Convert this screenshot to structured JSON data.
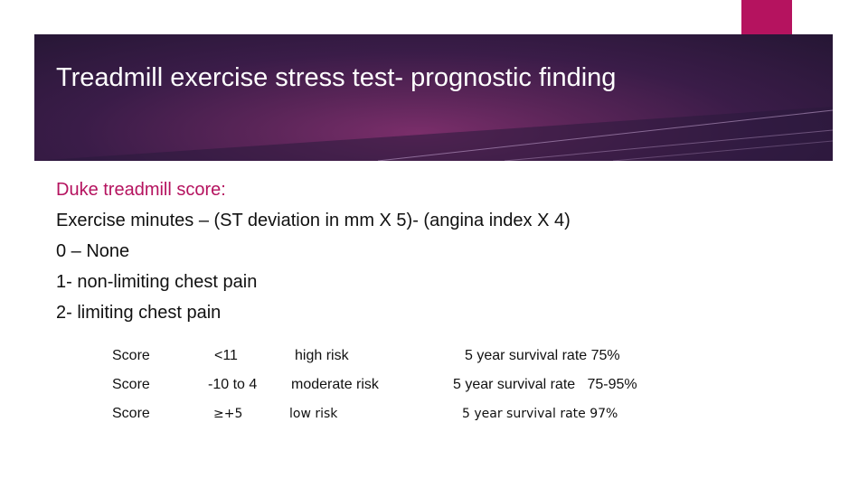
{
  "slide": {
    "title": "Treadmill exercise stress test- prognostic finding",
    "colors": {
      "accent": "#b5135f",
      "header_dark": "#2a1738",
      "header_mid": "#6b2a64"
    },
    "body_lines": [
      "Duke treadmill score:",
      "Exercise minutes – (ST deviation in mm X 5)- (angina index X 4)",
      "0 – None",
      "1- non-limiting chest pain",
      "2- limiting chest pain"
    ],
    "score_rows": [
      {
        "label": "Score",
        "value": "<11",
        "risk": "high risk",
        "survival": "5 year survival rate 75%"
      },
      {
        "label": "Score",
        "value": "-10 to 4",
        "risk": "moderate risk",
        "survival": "5 year survival rate   75-95%"
      },
      {
        "label": "Score",
        "value": "≥+5",
        "risk": "low risk",
        "survival": "5 year survival rate 97%"
      }
    ]
  }
}
